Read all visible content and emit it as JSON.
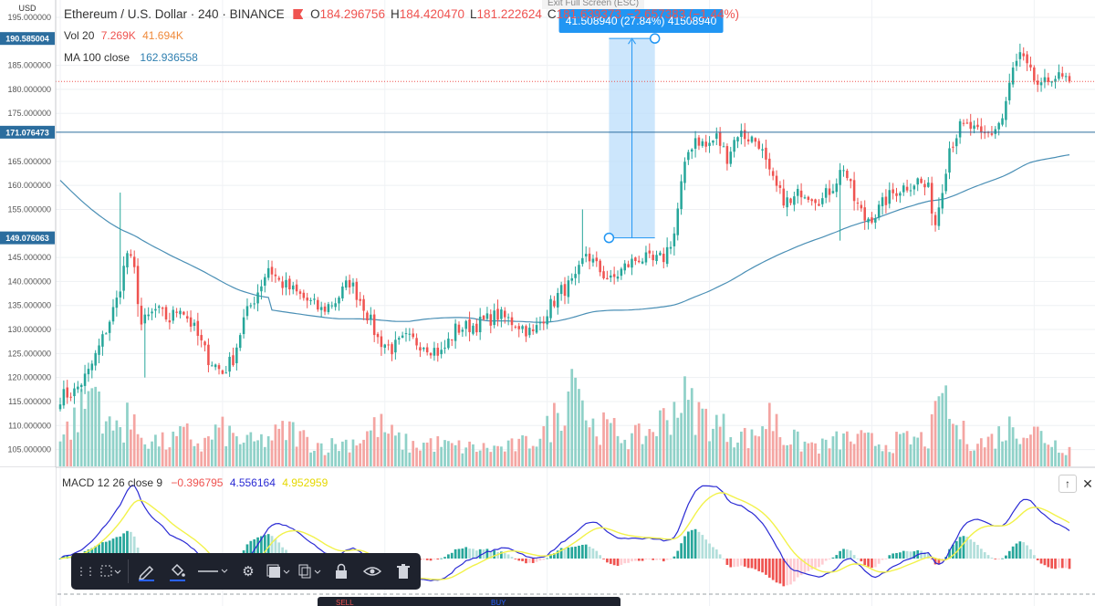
{
  "header": {
    "symbol_title": "Ethereum / U.S. Dollar · 240 · BINANCE",
    "ohlc": [
      {
        "label": "O",
        "value": "184.296756"
      },
      {
        "label": "H",
        "value": "184.420470"
      },
      {
        "label": "L",
        "value": "181.222624"
      },
      {
        "label": "C",
        "value": "181.639373"
      },
      {
        "label": "",
        "value": "−2.657383 (−1.44%)"
      }
    ],
    "exit_fullscreen": "Exit Full Screen (ESC)"
  },
  "volume_legend": {
    "name": "Vol 20",
    "value1": "7.269K",
    "value2": "41.694K"
  },
  "ma_legend": {
    "name": "MA 100 close",
    "value": "162.936558"
  },
  "macd_legend": {
    "name": "MACD 12 26 close 9",
    "hist": "−0.396795",
    "macd": "4.556164",
    "signal": "4.952959"
  },
  "price_axis": {
    "currency": "USD",
    "ticks": [
      "195.000000",
      "185.000000",
      "180.000000",
      "175.000000",
      "165.000000",
      "160.000000",
      "155.000000",
      "145.000000",
      "140.000000",
      "135.000000",
      "130.000000",
      "125.000000",
      "120.000000",
      "115.000000",
      "110.000000",
      "105.000000"
    ],
    "tick_values": [
      195,
      185,
      180,
      175,
      165,
      160,
      155,
      145,
      140,
      135,
      130,
      125,
      120,
      115,
      110,
      105
    ],
    "highlight_labels": [
      {
        "text": "190.585004",
        "value": 190.585004
      },
      {
        "text": "171.076473",
        "value": 171.076473
      },
      {
        "text": "149.076063",
        "value": 149.076063
      }
    ]
  },
  "measure_tool": {
    "label": "41.508940 (27.84%) 41508940",
    "from_price": 149.076063,
    "to_price": 190.585004,
    "from_index": 155,
    "to_index": 168
  },
  "horizontal_line_price": 171.076473,
  "last_price": 181.639373,
  "toolbar": {
    "items": [
      "grip-icon",
      "select-box-icon",
      "pencil-icon",
      "fill-bucket-icon",
      "line-style-icon",
      "gear-icon",
      "layers-icon",
      "copy-icon",
      "lock-icon",
      "eye-icon",
      "trash-icon"
    ]
  },
  "bottom_tabs": {
    "sell": "SELL",
    "buy": "BUY"
  },
  "colors": {
    "up": "#26a69a",
    "down": "#ef5350",
    "vol_up": "#8fd1c8",
    "vol_down": "#f4a5a2",
    "ma": "#4a8fb5",
    "macd": "#2b2bd4",
    "signal": "#f2f24a",
    "measure_fill": "#bbdefb",
    "measure_line": "#2196f3"
  },
  "chart_data": {
    "type": "candlestick",
    "anchors": [
      [
        0,
        116
      ],
      [
        4,
        117
      ],
      [
        8,
        121
      ],
      [
        12,
        128
      ],
      [
        16,
        136
      ],
      [
        19,
        146
      ],
      [
        21,
        142
      ],
      [
        23,
        131
      ],
      [
        27,
        134
      ],
      [
        31,
        132
      ],
      [
        34,
        135
      ],
      [
        38,
        130
      ],
      [
        42,
        124
      ],
      [
        46,
        121
      ],
      [
        49,
        124
      ],
      [
        52,
        132
      ],
      [
        56,
        138
      ],
      [
        59,
        143
      ],
      [
        62,
        140
      ],
      [
        66,
        138
      ],
      [
        70,
        136
      ],
      [
        74,
        134
      ],
      [
        78,
        136
      ],
      [
        82,
        140
      ],
      [
        86,
        135
      ],
      [
        90,
        128
      ],
      [
        94,
        126
      ],
      [
        98,
        128
      ],
      [
        103,
        127
      ],
      [
        108,
        125
      ],
      [
        112,
        130
      ],
      [
        118,
        131
      ],
      [
        124,
        133
      ],
      [
        130,
        131
      ],
      [
        134,
        129
      ],
      [
        138,
        134
      ],
      [
        142,
        138
      ],
      [
        146,
        140
      ],
      [
        149,
        146
      ],
      [
        152,
        143
      ],
      [
        156,
        140
      ],
      [
        160,
        143
      ],
      [
        164,
        145
      ],
      [
        168,
        144
      ],
      [
        171,
        145
      ],
      [
        174,
        150
      ],
      [
        176,
        160
      ],
      [
        178,
        167
      ],
      [
        180,
        170
      ],
      [
        183,
        168
      ],
      [
        186,
        170
      ],
      [
        189,
        166
      ],
      [
        192,
        171
      ],
      [
        195,
        170
      ],
      [
        198,
        169
      ],
      [
        201,
        162
      ],
      [
        204,
        158
      ],
      [
        207,
        156
      ],
      [
        210,
        159
      ],
      [
        213,
        158
      ],
      [
        216,
        157
      ],
      [
        219,
        160
      ],
      [
        222,
        164
      ],
      [
        225,
        157
      ],
      [
        228,
        153
      ],
      [
        231,
        154
      ],
      [
        234,
        157
      ],
      [
        237,
        159
      ],
      [
        240,
        160
      ],
      [
        243,
        161
      ],
      [
        246,
        159
      ],
      [
        248,
        152
      ],
      [
        250,
        160
      ],
      [
        252,
        168
      ],
      [
        255,
        172
      ],
      [
        258,
        172
      ],
      [
        261,
        170
      ],
      [
        264,
        171
      ],
      [
        267,
        174
      ],
      [
        270,
        184
      ],
      [
        272,
        187
      ],
      [
        275,
        183
      ],
      [
        278,
        180
      ],
      [
        281,
        183
      ],
      [
        284,
        182
      ],
      [
        286,
        182
      ]
    ],
    "volume_anchors": [
      [
        0,
        30
      ],
      [
        5,
        55
      ],
      [
        10,
        90
      ],
      [
        14,
        40
      ],
      [
        19,
        45
      ],
      [
        25,
        30
      ],
      [
        30,
        25
      ],
      [
        36,
        35
      ],
      [
        40,
        22
      ],
      [
        45,
        40
      ],
      [
        50,
        30
      ],
      [
        55,
        25
      ],
      [
        60,
        32
      ],
      [
        65,
        40
      ],
      [
        70,
        28
      ],
      [
        75,
        22
      ],
      [
        80,
        25
      ],
      [
        85,
        30
      ],
      [
        90,
        45
      ],
      [
        95,
        30
      ],
      [
        100,
        22
      ],
      [
        105,
        26
      ],
      [
        110,
        22
      ],
      [
        118,
        20
      ],
      [
        126,
        20
      ],
      [
        132,
        25
      ],
      [
        138,
        40
      ],
      [
        142,
        65
      ],
      [
        146,
        110
      ],
      [
        150,
        45
      ],
      [
        156,
        40
      ],
      [
        162,
        30
      ],
      [
        166,
        35
      ],
      [
        172,
        55
      ],
      [
        176,
        75
      ],
      [
        180,
        60
      ],
      [
        184,
        50
      ],
      [
        190,
        38
      ],
      [
        196,
        30
      ],
      [
        201,
        55
      ],
      [
        204,
        35
      ],
      [
        210,
        25
      ],
      [
        216,
        22
      ],
      [
        222,
        30
      ],
      [
        228,
        28
      ],
      [
        234,
        25
      ],
      [
        240,
        28
      ],
      [
        246,
        30
      ],
      [
        250,
        70
      ],
      [
        254,
        40
      ],
      [
        258,
        30
      ],
      [
        262,
        25
      ],
      [
        266,
        35
      ],
      [
        270,
        45
      ],
      [
        274,
        40
      ],
      [
        278,
        35
      ],
      [
        282,
        25
      ],
      [
        286,
        20
      ]
    ],
    "count": 287,
    "ma_period": 100,
    "macd_params": [
      12,
      26,
      9
    ],
    "price_range": [
      101.5,
      198.6
    ]
  }
}
